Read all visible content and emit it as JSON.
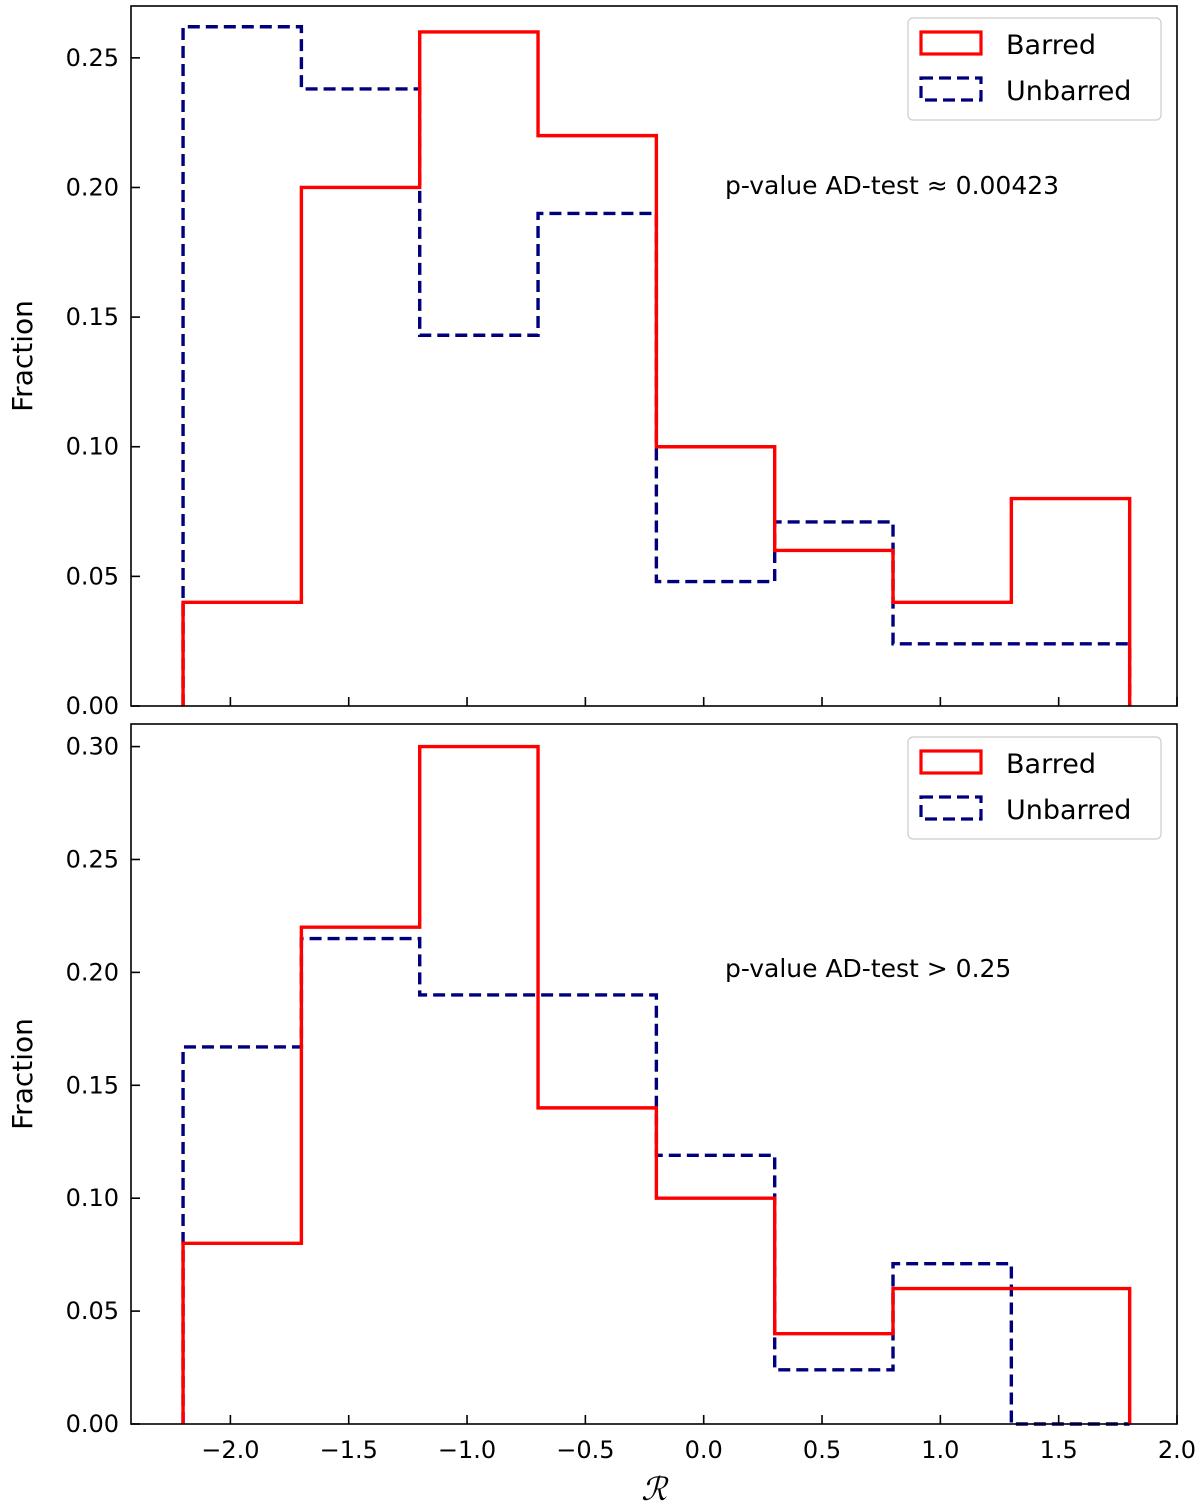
{
  "chart_data": [
    {
      "type": "histogram-step",
      "panel": "top",
      "ylabel": "Fraction",
      "ylim": [
        0,
        0.27
      ],
      "yticks": [
        0.0,
        0.05,
        0.1,
        0.15,
        0.2,
        0.25
      ],
      "ytick_labels": [
        "0.00",
        "0.05",
        "0.10",
        "0.15",
        "0.20",
        "0.25"
      ],
      "xlim": [
        -2.42,
        2.0
      ],
      "bin_edges": [
        -2.2,
        -1.7,
        -1.2,
        -0.7,
        -0.2,
        0.3,
        0.8,
        1.3,
        1.8
      ],
      "series": [
        {
          "name": "Barred",
          "color": "#ff0000",
          "style": "solid",
          "values": [
            0.04,
            0.2,
            0.26,
            0.22,
            0.1,
            0.06,
            0.04,
            0.08
          ]
        },
        {
          "name": "Unbarred",
          "color": "#00007f",
          "style": "dashed",
          "values": [
            0.262,
            0.238,
            0.143,
            0.19,
            0.048,
            0.071,
            0.024,
            0.024
          ]
        }
      ],
      "legend": [
        "Barred",
        "Unbarred"
      ],
      "annotation": "p-value AD-test ≈ 0.00423"
    },
    {
      "type": "histogram-step",
      "panel": "bottom",
      "ylabel": "Fraction",
      "xlabel": "ℛ",
      "ylim": [
        0,
        0.31
      ],
      "yticks": [
        0.0,
        0.05,
        0.1,
        0.15,
        0.2,
        0.25,
        0.3
      ],
      "ytick_labels": [
        "0.00",
        "0.05",
        "0.10",
        "0.15",
        "0.20",
        "0.25",
        "0.30"
      ],
      "xlim": [
        -2.42,
        2.0
      ],
      "xticks": [
        -2.0,
        -1.5,
        -1.0,
        -0.5,
        0.0,
        0.5,
        1.0,
        1.5,
        2.0
      ],
      "xtick_labels": [
        "−2.0",
        "−1.5",
        "−1.0",
        "−0.5",
        "0.0",
        "0.5",
        "1.0",
        "1.5",
        "2.0"
      ],
      "bin_edges": [
        -2.2,
        -1.7,
        -1.2,
        -0.7,
        -0.2,
        0.3,
        0.8,
        1.3,
        1.8
      ],
      "series": [
        {
          "name": "Barred",
          "color": "#ff0000",
          "style": "solid",
          "values": [
            0.08,
            0.22,
            0.3,
            0.14,
            0.1,
            0.04,
            0.06,
            0.06
          ]
        },
        {
          "name": "Unbarred",
          "color": "#00007f",
          "style": "dashed",
          "values": [
            0.167,
            0.215,
            0.19,
            0.19,
            0.119,
            0.024,
            0.071,
            0.0
          ]
        }
      ],
      "legend": [
        "Barred",
        "Unbarred"
      ],
      "annotation": "p-value AD-test > 0.25"
    }
  ]
}
